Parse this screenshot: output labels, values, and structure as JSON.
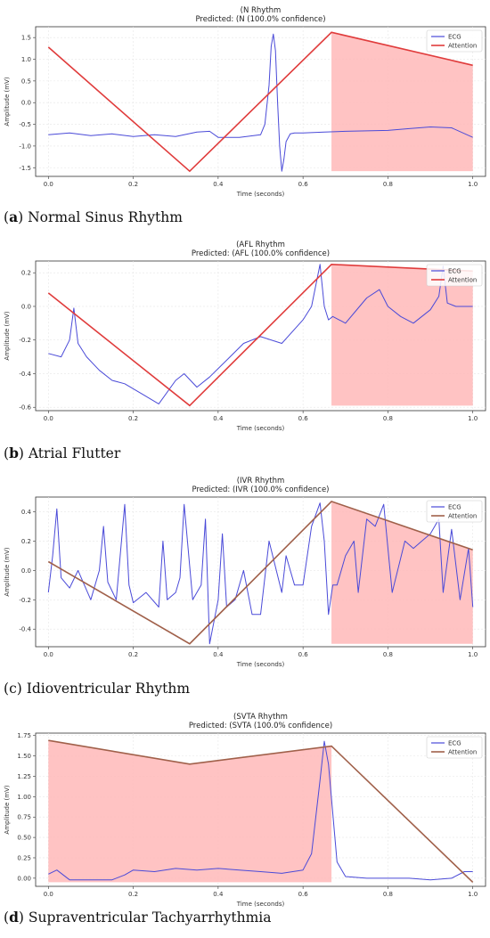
{
  "charts": [
    {
      "title": "(N Rhythm",
      "subtitle": "Predicted: (N (100.0% confidence)",
      "caption_letter": "a",
      "caption_text": "Normal Sinus Rhythm",
      "xlabel": "Time (seconds)",
      "ylabel": "Amplitude (mV)",
      "xticks": [
        "0.0",
        "0.2",
        "0.4",
        "0.6",
        "0.8",
        "1.0"
      ],
      "yticks": [
        "1.5",
        "1.0",
        "0.5",
        "0.0",
        "-0.5",
        "-1.0",
        "-1.5"
      ],
      "legend": [
        "ECG",
        "Attention"
      ]
    },
    {
      "title": "(AFL Rhythm",
      "subtitle": "Predicted: (AFL (100.0% confidence)",
      "caption_letter": "b",
      "caption_text": "Atrial Flutter",
      "xlabel": "Time (seconds)",
      "ylabel": "Amplitude (mV)",
      "xticks": [
        "0.0",
        "0.2",
        "0.4",
        "0.6",
        "0.8",
        "1.0"
      ],
      "yticks": [
        "0.2",
        "0.0",
        "-0.2",
        "-0.4",
        "-0.6"
      ],
      "legend": [
        "ECG",
        "Attention"
      ]
    },
    {
      "title": "(IVR Rhythm",
      "subtitle": "Predicted: (IVR (100.0% confidence)",
      "caption_letter": "c",
      "caption_text": "Idioventricular Rhythm",
      "xlabel": "Time (seconds)",
      "ylabel": "Amplitude (mV)",
      "xticks": [
        "0.0",
        "0.2",
        "0.4",
        "0.6",
        "0.8",
        "1.0"
      ],
      "yticks": [
        "0.4",
        "0.2",
        "0.0",
        "-0.2",
        "-0.4"
      ],
      "legend": [
        "ECG",
        "Attention"
      ]
    },
    {
      "title": "(SVTA Rhythm",
      "subtitle": "Predicted: (SVTA (100.0% confidence)",
      "caption_letter": "d",
      "caption_text": "Supraventricular Tachyarrhythmia",
      "xlabel": "Time (seconds)",
      "ylabel": "Amplitude (mV)",
      "xticks": [
        "0.0",
        "0.2",
        "0.4",
        "0.6",
        "0.8",
        "1.0"
      ],
      "yticks": [
        "1.75",
        "1.50",
        "1.25",
        "1.00",
        "0.75",
        "0.50",
        "0.25",
        "0.00"
      ],
      "legend": [
        "ECG",
        "Attention"
      ]
    }
  ],
  "chart_data": [
    {
      "type": "line",
      "xlim": [
        -0.03,
        1.03
      ],
      "ylim": [
        -1.7,
        1.75
      ],
      "grid": true,
      "legend_position": "top-right",
      "colors": {
        "ecg": "#4a4ad8",
        "attention": "#e03c3c",
        "shade": "#ffb8b8"
      },
      "series": [
        {
          "name": "ECG",
          "x": [
            0,
            0.05,
            0.1,
            0.15,
            0.2,
            0.25,
            0.3,
            0.33,
            0.35,
            0.38,
            0.4,
            0.45,
            0.5,
            0.51,
            0.52,
            0.525,
            0.53,
            0.535,
            0.54,
            0.545,
            0.55,
            0.555,
            0.56,
            0.57,
            0.58,
            0.6,
            0.65,
            0.7,
            0.75,
            0.8,
            0.85,
            0.9,
            0.95,
            1.0
          ],
          "y": [
            -0.74,
            -0.7,
            -0.76,
            -0.72,
            -0.78,
            -0.74,
            -0.78,
            -0.72,
            -0.68,
            -0.66,
            -0.8,
            -0.8,
            -0.74,
            -0.5,
            0.4,
            1.3,
            1.58,
            1.2,
            0.0,
            -1.0,
            -1.58,
            -1.3,
            -0.9,
            -0.72,
            -0.7,
            -0.7,
            -0.68,
            -0.66,
            -0.65,
            -0.64,
            -0.6,
            -0.56,
            -0.58,
            -0.8
          ]
        },
        {
          "name": "Attention",
          "x": [
            0,
            0.333,
            0.667,
            1.0
          ],
          "y": [
            1.28,
            -1.58,
            1.62,
            0.86
          ]
        }
      ],
      "shade": {
        "x0": 0.667,
        "x1": 1.0,
        "y_bottom": -1.58
      }
    },
    {
      "type": "line",
      "xlim": [
        -0.03,
        1.03
      ],
      "ylim": [
        -0.62,
        0.27
      ],
      "grid": true,
      "legend_position": "top-right",
      "colors": {
        "ecg": "#4a4ad8",
        "attention": "#e03c3c",
        "shade": "#ffb8b8"
      },
      "series": [
        {
          "name": "ECG",
          "x": [
            0,
            0.03,
            0.05,
            0.06,
            0.07,
            0.09,
            0.12,
            0.15,
            0.18,
            0.22,
            0.26,
            0.3,
            0.32,
            0.35,
            0.38,
            0.42,
            0.46,
            0.5,
            0.55,
            0.6,
            0.62,
            0.64,
            0.65,
            0.66,
            0.67,
            0.7,
            0.72,
            0.75,
            0.78,
            0.8,
            0.83,
            0.86,
            0.9,
            0.92,
            0.93,
            0.94,
            0.96,
            1.0
          ],
          "y": [
            -0.28,
            -0.3,
            -0.2,
            -0.01,
            -0.22,
            -0.3,
            -0.38,
            -0.44,
            -0.46,
            -0.52,
            -0.58,
            -0.44,
            -0.4,
            -0.48,
            -0.42,
            -0.32,
            -0.22,
            -0.18,
            -0.22,
            -0.08,
            0.0,
            0.25,
            0.0,
            -0.08,
            -0.06,
            -0.1,
            -0.04,
            0.05,
            0.1,
            0.0,
            -0.06,
            -0.1,
            -0.02,
            0.06,
            0.24,
            0.02,
            0.0,
            0.0
          ]
        },
        {
          "name": "Attention",
          "x": [
            0,
            0.333,
            0.667,
            1.0
          ],
          "y": [
            0.08,
            -0.59,
            0.25,
            0.21
          ]
        }
      ],
      "shade": {
        "x0": 0.667,
        "x1": 1.0,
        "y_bottom": -0.59
      }
    },
    {
      "type": "line",
      "xlim": [
        -0.03,
        1.03
      ],
      "ylim": [
        -0.52,
        0.5
      ],
      "grid": true,
      "legend_position": "top-right",
      "colors": {
        "ecg": "#4a4ad8",
        "attention": "#a0604a",
        "shade": "#ffb8b8"
      },
      "series": [
        {
          "name": "ECG",
          "x": [
            0,
            0.01,
            0.02,
            0.03,
            0.05,
            0.07,
            0.1,
            0.12,
            0.13,
            0.14,
            0.16,
            0.18,
            0.19,
            0.2,
            0.23,
            0.26,
            0.27,
            0.28,
            0.3,
            0.31,
            0.32,
            0.34,
            0.36,
            0.37,
            0.38,
            0.4,
            0.41,
            0.42,
            0.44,
            0.46,
            0.48,
            0.5,
            0.52,
            0.55,
            0.56,
            0.58,
            0.6,
            0.62,
            0.64,
            0.65,
            0.66,
            0.67,
            0.68,
            0.7,
            0.72,
            0.73,
            0.75,
            0.77,
            0.79,
            0.81,
            0.84,
            0.86,
            0.88,
            0.9,
            0.92,
            0.93,
            0.95,
            0.97,
            0.99,
            1.0
          ],
          "y": [
            -0.15,
            0.1,
            0.42,
            -0.05,
            -0.12,
            0.0,
            -0.2,
            0.0,
            0.3,
            -0.08,
            -0.2,
            0.45,
            -0.1,
            -0.22,
            -0.15,
            -0.25,
            0.2,
            -0.2,
            -0.15,
            -0.05,
            0.45,
            -0.2,
            -0.1,
            0.35,
            -0.5,
            -0.2,
            0.25,
            -0.25,
            -0.2,
            0.0,
            -0.3,
            -0.3,
            0.2,
            -0.15,
            0.1,
            -0.1,
            -0.1,
            0.3,
            0.46,
            0.2,
            -0.3,
            -0.1,
            -0.1,
            0.1,
            0.2,
            -0.15,
            0.35,
            0.3,
            0.45,
            -0.15,
            0.2,
            0.15,
            0.2,
            0.25,
            0.35,
            -0.15,
            0.28,
            -0.2,
            0.15,
            -0.25
          ]
        },
        {
          "name": "Attention",
          "x": [
            0,
            0.333,
            0.667,
            1.0
          ],
          "y": [
            0.06,
            -0.5,
            0.47,
            0.14
          ]
        }
      ],
      "shade": {
        "x0": 0.667,
        "x1": 1.0,
        "y_bottom": -0.5
      }
    },
    {
      "type": "line",
      "xlim": [
        -0.03,
        1.03
      ],
      "ylim": [
        -0.1,
        1.78
      ],
      "grid": true,
      "legend_position": "top-right",
      "colors": {
        "ecg": "#4a4ad8",
        "attention": "#a0604a",
        "shade": "#ffb8b8"
      },
      "series": [
        {
          "name": "ECG",
          "x": [
            0,
            0.02,
            0.05,
            0.1,
            0.15,
            0.18,
            0.2,
            0.25,
            0.3,
            0.35,
            0.4,
            0.45,
            0.5,
            0.55,
            0.6,
            0.62,
            0.64,
            0.65,
            0.66,
            0.67,
            0.68,
            0.7,
            0.75,
            0.8,
            0.85,
            0.9,
            0.95,
            0.98,
            1.0
          ],
          "y": [
            0.05,
            0.1,
            -0.02,
            -0.02,
            -0.02,
            0.04,
            0.1,
            0.08,
            0.12,
            0.1,
            0.12,
            0.1,
            0.08,
            0.06,
            0.1,
            0.3,
            1.2,
            1.68,
            1.4,
            0.8,
            0.2,
            0.02,
            0.0,
            0.0,
            0.0,
            -0.02,
            0.0,
            0.08,
            0.08
          ]
        },
        {
          "name": "Attention",
          "x": [
            0,
            0.333,
            0.667,
            1.0
          ],
          "y": [
            1.69,
            1.4,
            1.62,
            -0.05
          ]
        }
      ],
      "shade": {
        "x0": 0.0,
        "x1": 0.667,
        "y_bottom": -0.05
      }
    }
  ]
}
